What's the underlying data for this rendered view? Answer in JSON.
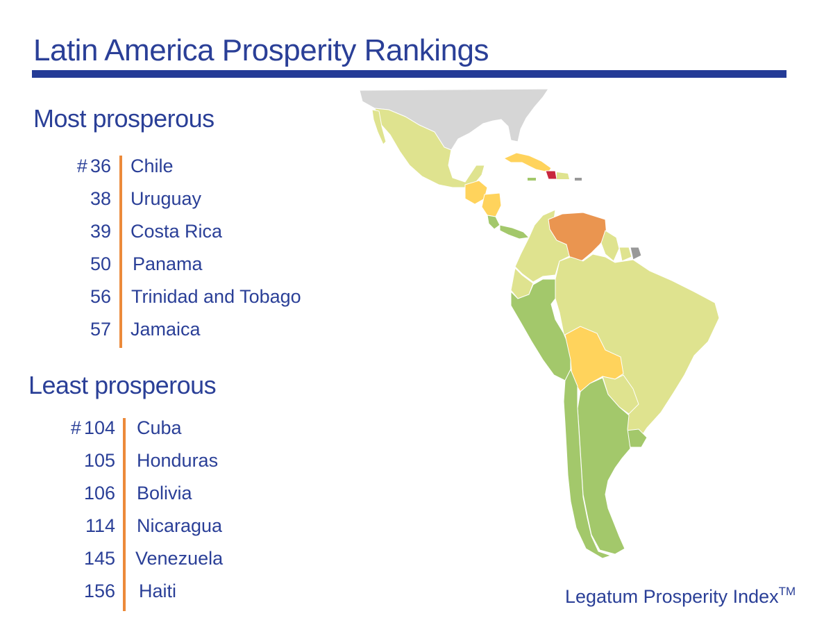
{
  "title": "Latin America Prosperity Rankings",
  "sections": {
    "most": {
      "heading": "Most prosperous",
      "rank_prefix": "#",
      "items": [
        {
          "rank": "36",
          "country": "Chile"
        },
        {
          "rank": "38",
          "country": "Uruguay"
        },
        {
          "rank": "39",
          "country": "Costa Rica"
        },
        {
          "rank": "50",
          "country": "Panama"
        },
        {
          "rank": "56",
          "country": "Trinidad and Tobago"
        },
        {
          "rank": "57",
          "country": "Jamaica"
        }
      ]
    },
    "least": {
      "heading": "Least prosperous",
      "rank_prefix": "#",
      "items": [
        {
          "rank": "104",
          "country": "Cuba"
        },
        {
          "rank": "105",
          "country": "Honduras"
        },
        {
          "rank": "106",
          "country": "Bolivia"
        },
        {
          "rank": "114",
          "country": "Nicaragua"
        },
        {
          "rank": "145",
          "country": "Venezuela"
        },
        {
          "rank": "156",
          "country": "Haiti"
        }
      ]
    }
  },
  "footer": {
    "brand": "Legatum Prosperity Index",
    "mark": "TM"
  },
  "colors": {
    "title_blue": "#2a3f97",
    "accent_orange": "#ec8a3a",
    "tier_high": "#a3c86b",
    "tier_mid": "#dfe38f",
    "tier_low": "#ffd35c",
    "tier_lower": "#ea9550",
    "tier_lowest": "#c8263d",
    "no_data": "#d6d6d6"
  }
}
